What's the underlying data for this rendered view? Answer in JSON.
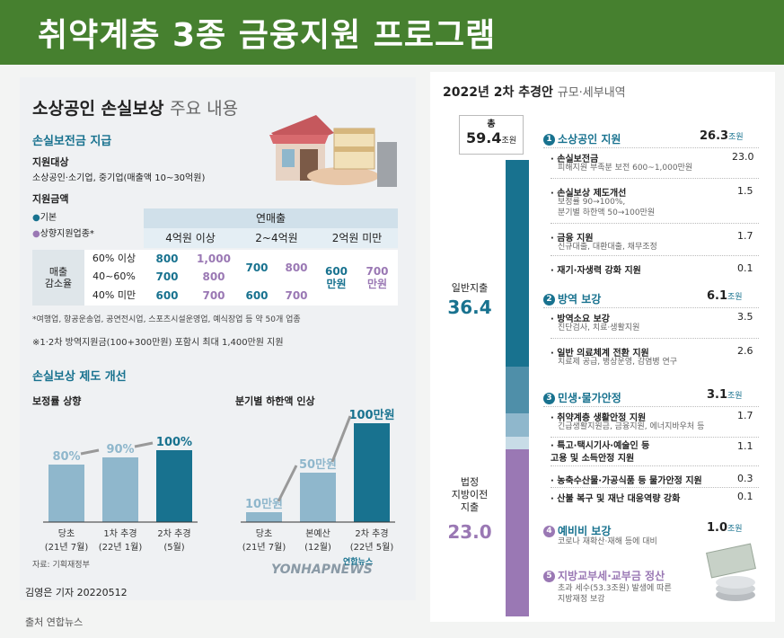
{
  "banner": {
    "title": "취약계층 3종 금융지원 프로그램"
  },
  "left": {
    "heading": "소상공인 손실보상",
    "heading_suffix": "주요 내용",
    "support": {
      "title": "손실보전금 지급",
      "target_label": "지원대상",
      "target_text": "소상공인·소기업, 중기업(매출액 10~30억원)",
      "amount_label": "지원금액",
      "legend_basic": "기본",
      "legend_up": "상향지원업종*",
      "table": {
        "header_main": "연매출",
        "cols": [
          "4억원 이상",
          "2~4억원",
          "2억원 미만"
        ],
        "row_header": "매출\n감소율",
        "rows": [
          {
            "label": "60% 이상",
            "c1b": "800",
            "c1u": "1,000"
          },
          {
            "label": "40~60%",
            "c1b": "700",
            "c1u": "800"
          },
          {
            "label": "40% 미만",
            "c1b": "600",
            "c1u": "700",
            "c2b": "600",
            "c2u": "700"
          }
        ],
        "c2_merged_b": "700",
        "c2_merged_u": "800",
        "c3_b": "600\n만원",
        "c3_u": "700\n만원"
      },
      "note1": "*여행업, 항공운송업, 공연전시업, 스포츠시설운영업, 예식장업 등 약 50개 업종",
      "note2": "※1·2차 방역지원금(100+300만원) 포함시 최대 1,400만원 지원"
    },
    "reform": {
      "title": "손실보상 제도 개선",
      "chart1": {
        "title": "보정률 상향"
      },
      "chart2": {
        "title": "분기별 하한액 인상"
      },
      "source": "자료: 기획재정부"
    }
  },
  "chart_data": [
    {
      "type": "bar",
      "title": "보정률 상향",
      "categories": [
        "당초\n(21년 7월)",
        "1차 추경\n(22년 1월)",
        "2차 추경\n(5월)"
      ],
      "values": [
        80,
        90,
        100
      ],
      "labels": [
        "80%",
        "90%",
        "100%"
      ]
    },
    {
      "type": "bar",
      "title": "분기별 하한액 인상",
      "categories": [
        "당초\n(21년 7월)",
        "본예산\n(12월)",
        "2차 추경\n(22년 5월)"
      ],
      "values": [
        10,
        50,
        100
      ],
      "labels": [
        "10만원",
        "50만원",
        "100만원"
      ]
    }
  ],
  "right": {
    "title": "2022년 2차 추경안",
    "title_suffix": "규모·세부내역",
    "total_label": "총",
    "total_value": "59.4",
    "total_unit": "조원",
    "general_label": "일반지출",
    "general_value": "36.4",
    "transfer_label": "법정\n지방이전\n지출",
    "transfer_value": "23.0",
    "sections": [
      {
        "num": "1",
        "title": "소상공인 지원",
        "value": "26.3",
        "unit": "조원",
        "items": [
          {
            "name": "손실보전금",
            "value": "23.0",
            "desc": "피해지원 부족분 보전 600~1,000만원"
          },
          {
            "name": "손실보상 제도개선",
            "value": "1.5",
            "desc": "보정률 90→100%,\n분기별 하한액 50→100만원"
          },
          {
            "name": "금융 지원",
            "value": "1.7",
            "desc": "신규대출, 대환대출, 채무조정"
          },
          {
            "name": "재기·자생력 강화 지원",
            "value": "0.1",
            "desc": ""
          }
        ]
      },
      {
        "num": "2",
        "title": "방역 보강",
        "value": "6.1",
        "unit": "조원",
        "items": [
          {
            "name": "방역소요 보강",
            "value": "3.5",
            "desc": "진단검사, 치료·생활지원"
          },
          {
            "name": "일반 의료체계 전환 지원",
            "value": "2.6",
            "desc": "치료제 공급, 병상운영, 감염병 연구"
          }
        ]
      },
      {
        "num": "3",
        "title": "민생·물가안정",
        "value": "3.1",
        "unit": "조원",
        "items": [
          {
            "name": "취약계층 생활안정 지원",
            "value": "1.7",
            "desc": "긴급생활지원금, 금융지원, 에너지바우처 등"
          },
          {
            "name": "특고·택시기사·예술인 등\n고용 및 소득안정 지원",
            "value": "1.1",
            "desc": ""
          },
          {
            "name": "농축수산물·가공식품 등 물가안정 지원",
            "value": "0.3",
            "desc": ""
          },
          {
            "name": "산불 복구 및 재난 대응역량 강화",
            "value": "0.1",
            "desc": ""
          }
        ]
      },
      {
        "num": "4",
        "title": "예비비 보강",
        "value": "1.0",
        "unit": "조원",
        "desc": "코로나 재확산·재해 등에 대비"
      },
      {
        "num": "5",
        "title": "지방교부세·교부금 정산",
        "value": "",
        "unit": "",
        "desc": "초과 세수(53.3조원) 발생에 따른\n지방재정 보강"
      }
    ]
  },
  "credits": {
    "byline": "김영은 기자  20220512",
    "watermark": "YONHAPNEWS",
    "logo": "연합뉴스",
    "source": "출처 연합뉴스"
  },
  "colors": {
    "green": "#46802f",
    "teal": "#18728f",
    "lightblue": "#8fb7cc",
    "purple": "#9a78b4"
  }
}
